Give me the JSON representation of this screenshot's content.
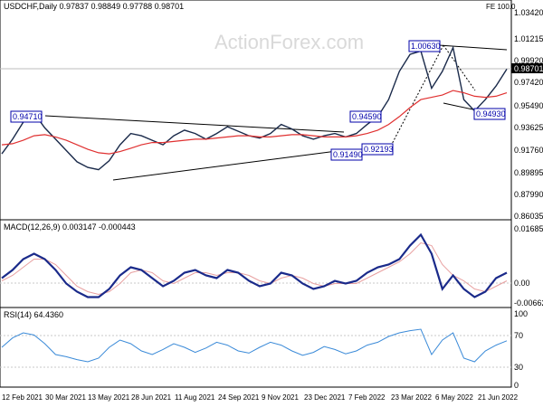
{
  "header": {
    "symbol_info": "USDCHF,Daily  0.97837 0.98849 0.97788 0.98701",
    "fe_label": "FE 100.0"
  },
  "watermark": "ActionForex.com",
  "chart_data": [
    {
      "type": "line",
      "panel": "price",
      "yticks": [
        "1.03420",
        "1.01215",
        "0.99920",
        "0.97420",
        "0.95490",
        "0.93625",
        "0.91760",
        "0.89895",
        "0.87990",
        "0.86035"
      ],
      "ylim": [
        0.8545,
        1.0385
      ],
      "current_price": "0.98701",
      "annotations": [
        "0.94710",
        "0.94590",
        "1.00630",
        "0.94930",
        "0.92193",
        "0.91490"
      ],
      "series": [
        {
          "values": [
            0.912,
            0.925,
            0.94,
            0.948,
            0.935,
            0.925,
            0.915,
            0.905,
            0.9,
            0.898,
            0.906,
            0.92,
            0.93,
            0.928,
            0.924,
            0.92,
            0.928,
            0.933,
            0.93,
            0.925,
            0.93,
            0.936,
            0.932,
            0.928,
            0.926,
            0.93,
            0.938,
            0.934,
            0.928,
            0.925,
            0.928,
            0.93,
            0.927,
            0.93,
            0.938,
            0.945,
            0.96,
            0.985,
            1.0,
            1.003,
            0.97,
            0.985,
            1.006,
            0.96,
            0.95,
            0.96,
            0.972,
            0.987
          ]
        },
        {
          "values": [
            0.92,
            0.921,
            0.924,
            0.928,
            0.929,
            0.927,
            0.924,
            0.92,
            0.916,
            0.913,
            0.912,
            0.914,
            0.917,
            0.92,
            0.922,
            0.922,
            0.923,
            0.924,
            0.925,
            0.925,
            0.926,
            0.927,
            0.928,
            0.928,
            0.927,
            0.927,
            0.928,
            0.929,
            0.929,
            0.928,
            0.927,
            0.927,
            0.927,
            0.928,
            0.93,
            0.933,
            0.938,
            0.945,
            0.953,
            0.96,
            0.962,
            0.964,
            0.968,
            0.966,
            0.963,
            0.962,
            0.963,
            0.966
          ]
        }
      ]
    },
    {
      "type": "line",
      "panel": "macd",
      "title": "MACD(12,26,9) 0.003147 -0.000443",
      "yticks": [
        "0.016856",
        "0.00",
        "-0.006629"
      ],
      "ylim": [
        -0.0085,
        0.0185
      ],
      "series": [
        {
          "values": [
            0.001,
            0.004,
            0.008,
            0.01,
            0.008,
            0.004,
            -0.001,
            -0.004,
            -0.006,
            -0.006,
            -0.003,
            0.002,
            0.005,
            0.004,
            0.001,
            -0.002,
            0.0,
            0.003,
            0.004,
            0.002,
            0.001,
            0.004,
            0.003,
            0.0,
            -0.002,
            -0.001,
            0.003,
            0.002,
            -0.001,
            -0.003,
            -0.002,
            0.0,
            -0.001,
            0.0,
            0.003,
            0.005,
            0.006,
            0.008,
            0.013,
            0.017,
            0.01,
            -0.003,
            0.002,
            -0.003,
            -0.006,
            -0.004,
            0.001,
            0.003
          ]
        },
        {
          "values": [
            0.0,
            0.002,
            0.005,
            0.008,
            0.008,
            0.006,
            0.002,
            -0.002,
            -0.004,
            -0.005,
            -0.004,
            -0.001,
            0.003,
            0.004,
            0.003,
            0.0,
            -0.001,
            0.001,
            0.003,
            0.003,
            0.002,
            0.003,
            0.003,
            0.002,
            0.0,
            -0.001,
            0.001,
            0.002,
            0.001,
            -0.001,
            -0.002,
            -0.001,
            -0.001,
            -0.001,
            0.001,
            0.003,
            0.005,
            0.007,
            0.01,
            0.014,
            0.013,
            0.006,
            0.002,
            0.0,
            -0.003,
            -0.004,
            -0.002,
            0.0
          ]
        }
      ]
    },
    {
      "type": "line",
      "panel": "rsi",
      "title": "RSI(14) 64.4360",
      "yticks": [
        "100",
        "70",
        "30",
        "0"
      ],
      "ylim": [
        0,
        100
      ],
      "series": [
        {
          "values": [
            55,
            68,
            75,
            72,
            60,
            45,
            42,
            38,
            35,
            40,
            55,
            65,
            60,
            50,
            45,
            52,
            60,
            55,
            48,
            54,
            62,
            58,
            50,
            47,
            55,
            62,
            58,
            50,
            44,
            48,
            56,
            52,
            46,
            50,
            58,
            62,
            70,
            75,
            78,
            80,
            45,
            65,
            75,
            40,
            35,
            50,
            58,
            64
          ]
        }
      ]
    }
  ],
  "xaxis": {
    "labels": [
      "12 Feb 2021",
      "30 Mar 2021",
      "13 May 2021",
      "28 Jun 2021",
      "11 Aug 2021",
      "24 Sep 2021",
      "9 Nov 2021",
      "23 Dec 2021",
      "7 Feb 2022",
      "23 Mar 2022",
      "6 May 2022",
      "21 Jun 2022"
    ]
  }
}
